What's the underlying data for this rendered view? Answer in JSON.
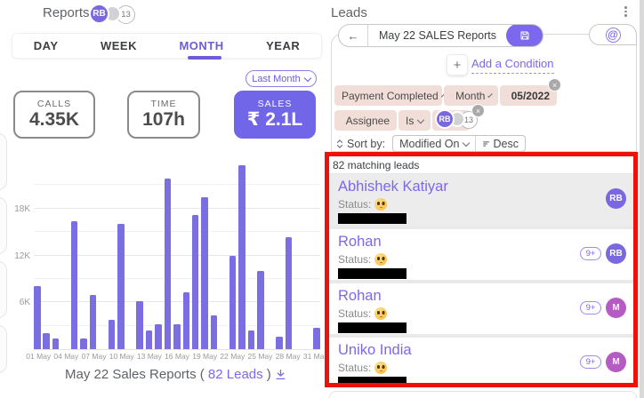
{
  "left_panel": {
    "title": "Reports",
    "header_avatars": {
      "primary_initials": "RB",
      "count_badge": "13"
    },
    "tabs": [
      {
        "label": "DAY",
        "active": false
      },
      {
        "label": "WEEK",
        "active": false
      },
      {
        "label": "MONTH",
        "active": true
      },
      {
        "label": "YEAR",
        "active": false
      }
    ],
    "period_selector": "Last Month",
    "stats": [
      {
        "label": "CALLS",
        "value": "4.35K",
        "highlight": false
      },
      {
        "label": "TIME",
        "value": "107h",
        "highlight": false
      },
      {
        "label": "SALES",
        "value": "₹ 2.1L",
        "highlight": true
      }
    ],
    "caption": {
      "prefix": "May 22 Sales Reports ( ",
      "link": "82 Leads",
      "suffix": " )"
    }
  },
  "chart_data": {
    "type": "bar",
    "title": "May 22 Sales Reports ( 82 Leads )",
    "xlabel": "",
    "ylabel": "",
    "unit": "K",
    "ylim": [
      0,
      24
    ],
    "gridline_step": 3,
    "y_ticks": {
      "values": [
        6,
        12,
        18
      ],
      "labels": [
        "6K",
        "12K",
        "18K"
      ]
    },
    "categories": [
      "01 May",
      "02 May",
      "03 May",
      "04 May",
      "05 May",
      "06 May",
      "07 May",
      "08 May",
      "09 May",
      "10 May",
      "11 May",
      "12 May",
      "13 May",
      "14 May",
      "15 May",
      "16 May",
      "17 May",
      "18 May",
      "19 May",
      "20 May",
      "21 May",
      "22 May",
      "23 May",
      "24 May",
      "25 May",
      "26 May",
      "27 May",
      "28 May",
      "29 May",
      "30 May",
      "31 May"
    ],
    "values": [
      8.1,
      2.1,
      1.4,
      0,
      16.4,
      1.4,
      6.9,
      0,
      3.8,
      16.0,
      0,
      6.1,
      2.4,
      3.2,
      21.8,
      3.2,
      7.3,
      17.2,
      19.5,
      4.3,
      0,
      11.9,
      23.6,
      2.4,
      10.0,
      0,
      1.6,
      14.3,
      0,
      0,
      2.7
    ],
    "x_tick_days": [
      1,
      4,
      7,
      10,
      13,
      16,
      19,
      22,
      25,
      28,
      31
    ],
    "legend": null,
    "grid": true
  },
  "right_panel": {
    "title": "Leads",
    "report_nav": {
      "back_icon": "←",
      "title": "May 22 SALES Reports"
    },
    "add_condition_label": "Add a Condition",
    "conditions_row1": [
      {
        "label": "Payment Completed",
        "has_dropdown": true,
        "icon": null
      },
      {
        "label": "Month",
        "has_dropdown": true,
        "icon": "clock"
      },
      {
        "label": "05/2022",
        "has_dropdown": false,
        "icon": "calendar"
      }
    ],
    "conditions_row2": {
      "field_label": "Assignee",
      "field_icon": "person",
      "operator": "Is",
      "avatars": {
        "primary_initials": "RB",
        "count_badge": "13"
      }
    },
    "close_icon_glyph": "×",
    "sort": {
      "label": "Sort by:",
      "field": "Modified On",
      "direction": "Desc"
    },
    "results": {
      "count_text": "82 matching leads",
      "status_label": "Status:",
      "leads": [
        {
          "name": "Abhishek Katiyar",
          "avatar_initials": "RB",
          "avatar_color": "#7a68e0",
          "badge": null,
          "selected": true
        },
        {
          "name": "Rohan",
          "avatar_initials": "RB",
          "avatar_color": "#7a68e0",
          "badge": "9+",
          "selected": false
        },
        {
          "name": "Rohan",
          "avatar_initials": "M",
          "avatar_color": "#b55bc3",
          "badge": "9+",
          "selected": false
        },
        {
          "name": "Uniko India",
          "avatar_initials": "M",
          "avatar_color": "#b55bc3",
          "badge": "9+",
          "selected": false
        }
      ]
    }
  },
  "colors": {
    "accent_purple": "#7b68ee",
    "bar_purple": "#7b6ee2",
    "sales_card_bg": "#7165e8",
    "avatar_purple": "#7a68e0",
    "avatar_magenta": "#b55bc3",
    "chip_bg": "#f2ded8",
    "annotation_red": "#ee100b",
    "selected_row_bg": "#ececec",
    "redaction_black": "#000000"
  }
}
